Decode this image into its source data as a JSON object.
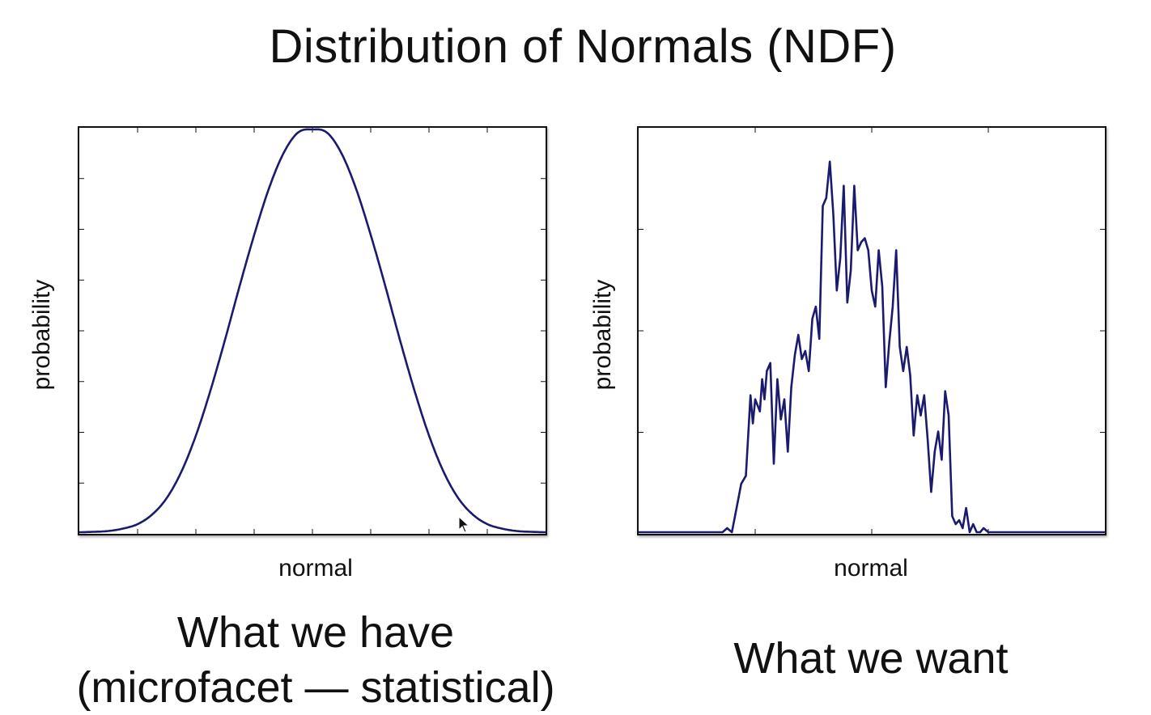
{
  "slide": {
    "title": "Distribution of Normals (NDF)",
    "caption_left_line1": "What we have",
    "caption_left_line2": "(microfacet — statistical)",
    "caption_right": "What we want"
  },
  "colors": {
    "curve": "#1a1a6e",
    "axis": "#111111",
    "background": "#ffffff"
  },
  "chart_data": [
    {
      "type": "line",
      "xlabel": "normal",
      "ylabel": "probability",
      "xlim": [
        0,
        8
      ],
      "ylim": [
        0,
        1
      ],
      "xticks": [
        1,
        2,
        3,
        4,
        5,
        6,
        7
      ],
      "yticks": [
        0.125,
        0.25,
        0.375,
        0.5,
        0.625,
        0.75,
        0.875
      ],
      "series": [
        {
          "x": [
            0,
            0.25,
            0.5,
            0.75,
            1,
            1.25,
            1.5,
            1.75,
            2,
            2.25,
            2.5,
            2.75,
            3,
            3.25,
            3.5,
            3.75,
            4,
            4.25,
            4.5,
            4.75,
            5,
            5.25,
            5.5,
            5.75,
            6,
            6.25,
            6.5,
            6.75,
            7,
            7.25,
            7.5,
            7.75,
            8
          ],
          "y": [
            0.0,
            0.001,
            0.003,
            0.009,
            0.02,
            0.044,
            0.085,
            0.15,
            0.24,
            0.352,
            0.478,
            0.611,
            0.738,
            0.852,
            0.94,
            0.992,
            1.0,
            0.992,
            0.94,
            0.852,
            0.738,
            0.611,
            0.478,
            0.352,
            0.24,
            0.15,
            0.085,
            0.044,
            0.02,
            0.009,
            0.003,
            0.001,
            0.0
          ]
        }
      ]
    },
    {
      "type": "line",
      "xlabel": "normal",
      "ylabel": "probability",
      "xlim": [
        0,
        4
      ],
      "ylim": [
        0,
        1
      ],
      "xticks": [
        1,
        2,
        3
      ],
      "yticks": [
        0.25,
        0.5,
        0.75
      ],
      "series": [
        {
          "x": [
            0,
            0.72,
            0.76,
            0.8,
            0.84,
            0.88,
            0.92,
            0.96,
            0.98,
            1.0,
            1.04,
            1.06,
            1.08,
            1.1,
            1.13,
            1.16,
            1.19,
            1.22,
            1.25,
            1.28,
            1.31,
            1.34,
            1.37,
            1.4,
            1.43,
            1.46,
            1.49,
            1.52,
            1.55,
            1.58,
            1.61,
            1.64,
            1.67,
            1.7,
            1.73,
            1.76,
            1.79,
            1.82,
            1.85,
            1.88,
            1.91,
            1.94,
            1.97,
            2.0,
            2.03,
            2.06,
            2.09,
            2.12,
            2.15,
            2.18,
            2.21,
            2.24,
            2.27,
            2.3,
            2.33,
            2.36,
            2.39,
            2.42,
            2.45,
            2.48,
            2.51,
            2.54,
            2.57,
            2.6,
            2.63,
            2.66,
            2.69,
            2.72,
            2.75,
            2.78,
            2.81,
            2.84,
            2.87,
            2.9,
            2.93,
            2.96,
            3.0,
            3.03,
            3.06,
            3.09,
            3.12,
            3.15,
            3.18,
            3.21,
            3.24,
            3.27,
            3.3,
            3.33,
            3.36,
            3.4,
            4.0
          ],
          "y": [
            0.0,
            0.0,
            0.01,
            0.0,
            0.06,
            0.12,
            0.14,
            0.34,
            0.27,
            0.33,
            0.3,
            0.38,
            0.33,
            0.4,
            0.42,
            0.17,
            0.38,
            0.28,
            0.33,
            0.2,
            0.36,
            0.44,
            0.49,
            0.43,
            0.45,
            0.4,
            0.53,
            0.56,
            0.48,
            0.81,
            0.83,
            0.92,
            0.79,
            0.6,
            0.68,
            0.86,
            0.57,
            0.65,
            0.86,
            0.7,
            0.72,
            0.73,
            0.7,
            0.6,
            0.56,
            0.7,
            0.61,
            0.36,
            0.47,
            0.56,
            0.7,
            0.46,
            0.4,
            0.46,
            0.39,
            0.24,
            0.34,
            0.29,
            0.34,
            0.23,
            0.1,
            0.2,
            0.25,
            0.18,
            0.35,
            0.29,
            0.04,
            0.02,
            0.03,
            0.01,
            0.06,
            0.0,
            0.02,
            0.0,
            0.0,
            0.01,
            0.0,
            0.0,
            0.0,
            0.0,
            0.0,
            0.0,
            0.0,
            0.0,
            0.0,
            0.0,
            0.0,
            0.0,
            0.0,
            0.0,
            0.0
          ]
        }
      ]
    }
  ]
}
